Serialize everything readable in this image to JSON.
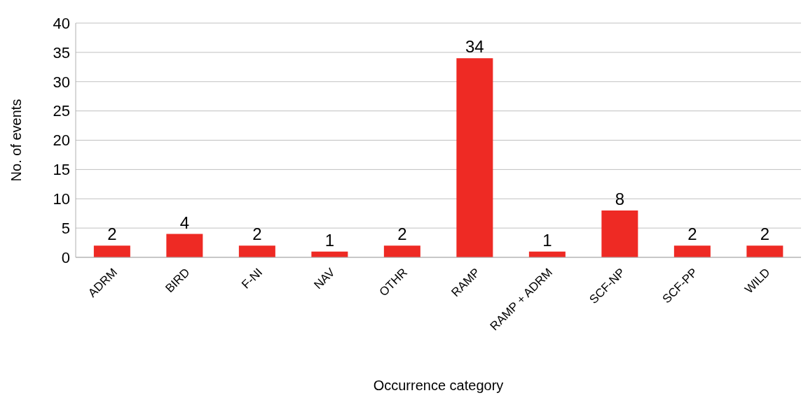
{
  "chart_data": {
    "type": "bar",
    "xlabel": "Occurrence category",
    "ylabel": "No. of events",
    "categories": [
      "ADRM",
      "BIRD",
      "F-NI",
      "NAV",
      "OTHR",
      "RAMP",
      "RAMP + ADRM",
      "SCF-NP",
      "SCF-PP",
      "WILD"
    ],
    "values": [
      2,
      4,
      2,
      1,
      2,
      34,
      1,
      8,
      2,
      2
    ],
    "color": "#ee2a24",
    "ylim": [
      0,
      40
    ],
    "yticks": [
      0,
      5,
      10,
      15,
      20,
      25,
      30,
      35,
      40
    ],
    "grid": "y",
    "data_labels": true
  }
}
